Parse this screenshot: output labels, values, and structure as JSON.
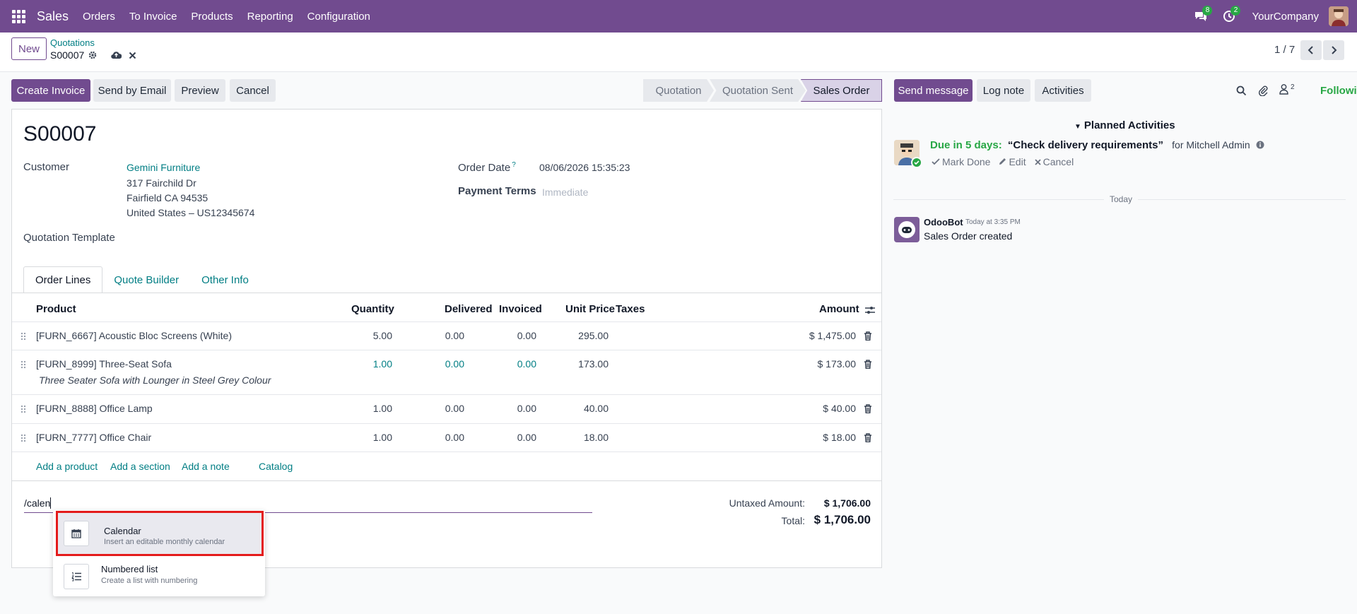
{
  "navbar": {
    "app_name": "Sales",
    "menus": [
      "Orders",
      "To Invoice",
      "Products",
      "Reporting",
      "Configuration"
    ],
    "messages_count": "8",
    "activities_count": "2",
    "company": "YourCompany"
  },
  "control_panel": {
    "new_label": "New",
    "breadcrumb_parent": "Quotations",
    "breadcrumb_current": "S00007",
    "pager": "1 / 7"
  },
  "actions": {
    "create_invoice": "Create Invoice",
    "send_email": "Send by Email",
    "preview": "Preview",
    "cancel": "Cancel"
  },
  "statusbar": {
    "stages": [
      "Quotation",
      "Quotation Sent",
      "Sales Order"
    ],
    "current": "Sales Order"
  },
  "form": {
    "name": "S00007",
    "customer_label": "Customer",
    "customer_name": "Gemini Furniture",
    "address_line1": "317 Fairchild Dr",
    "address_line2": "Fairfield CA 94535",
    "address_line3": "United States – US12345674",
    "template_label": "Quotation Template",
    "order_date_label": "Order Date",
    "order_date_help": "?",
    "order_date": "08/06/2026 15:35:23",
    "payment_terms_label": "Payment Terms",
    "payment_terms_placeholder": "Immediate"
  },
  "tabs": [
    "Order Lines",
    "Quote Builder",
    "Other Info"
  ],
  "lines_table": {
    "headers": {
      "product": "Product",
      "quantity": "Quantity",
      "delivered": "Delivered",
      "invoiced": "Invoiced",
      "unit_price": "Unit Price",
      "taxes": "Taxes",
      "amount": "Amount"
    },
    "rows": [
      {
        "product": "[FURN_6667] Acoustic Bloc Screens (White)",
        "quantity": "5.00",
        "delivered": "0.00",
        "invoiced": "0.00",
        "unit_price": "295.00",
        "amount": "$ 1,475.00"
      },
      {
        "product": "[FURN_8999] Three-Seat Sofa",
        "description": "Three Seater Sofa with Lounger in Steel Grey Colour",
        "quantity": "1.00",
        "delivered": "0.00",
        "invoiced": "0.00",
        "unit_price": "173.00",
        "amount": "$ 173.00"
      },
      {
        "product": "[FURN_8888] Office Lamp",
        "quantity": "1.00",
        "delivered": "0.00",
        "invoiced": "0.00",
        "unit_price": "40.00",
        "amount": "$ 40.00"
      },
      {
        "product": "[FURN_7777] Office Chair",
        "quantity": "1.00",
        "delivered": "0.00",
        "invoiced": "0.00",
        "unit_price": "18.00",
        "amount": "$ 18.00"
      }
    ],
    "add_product": "Add a product",
    "add_section": "Add a section",
    "add_note": "Add a note",
    "catalog": "Catalog"
  },
  "note_input": {
    "value": "/calen"
  },
  "totals": {
    "untaxed_label": "Untaxed Amount:",
    "untaxed_value": "$ 1,706.00",
    "total_label": "Total:",
    "total_value": "$ 1,706.00"
  },
  "command_popup": {
    "items": [
      {
        "title": "Calendar",
        "description": "Insert an editable monthly calendar",
        "icon": "calendar-icon",
        "highlighted": true
      },
      {
        "title": "Numbered list",
        "description": "Create a list with numbering",
        "icon": "numbered-list-icon",
        "highlighted": false
      }
    ]
  },
  "chatter": {
    "send_message": "Send message",
    "log_note": "Log note",
    "activities": "Activities",
    "followers_count": "2",
    "following": "Following",
    "planned_activities": "Planned Activities",
    "activity": {
      "due": "Due in 5 days:",
      "title": "“Check delivery requirements”",
      "for_label": "for Mitchell Admin",
      "mark_done": "Mark Done",
      "edit": "Edit",
      "cancel": "Cancel"
    },
    "today": "Today",
    "message": {
      "author": "OdooBot",
      "time": "Today at 3:35 PM",
      "body": "Sales Order created"
    }
  },
  "colors": {
    "brand": "#714b8f",
    "link": "#017e84",
    "success": "#28a745",
    "highlight_border": "#e41b1b"
  }
}
